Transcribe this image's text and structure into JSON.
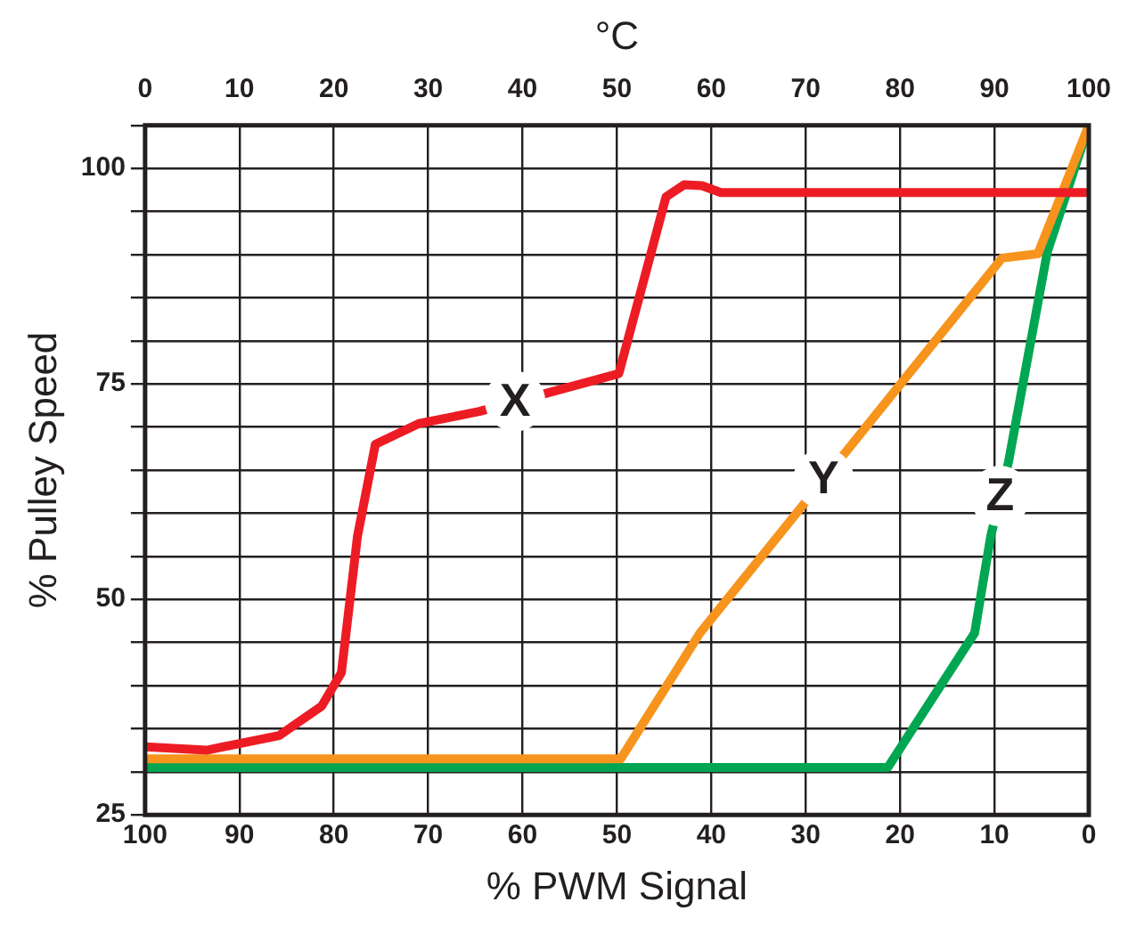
{
  "chart_data": {
    "type": "line",
    "xlabel": "% PWM Signal",
    "ylabel": "% Pulley Speed",
    "x2label": "°C",
    "xlim": [
      100,
      0
    ],
    "xticks": [
      100,
      90,
      80,
      70,
      60,
      50,
      40,
      30,
      20,
      10,
      0
    ],
    "x2lim": [
      0,
      100
    ],
    "x2ticks": [
      0,
      10,
      20,
      30,
      40,
      50,
      60,
      70,
      80,
      90,
      100
    ],
    "ylim": [
      25,
      105
    ],
    "yticks": [
      25,
      {
        "value": 30,
        "label": null
      },
      {
        "value": 35,
        "label": null
      },
      {
        "value": 40,
        "label": null
      },
      {
        "value": 45,
        "label": null
      },
      50,
      {
        "value": 55,
        "label": null
      },
      {
        "value": 60,
        "label": null
      },
      {
        "value": 65,
        "label": null
      },
      {
        "value": 70,
        "label": null
      },
      75,
      {
        "value": 80,
        "label": null
      },
      {
        "value": 85,
        "label": null
      },
      {
        "value": 90,
        "label": null
      },
      {
        "value": 95,
        "label": null
      },
      100,
      {
        "value": 105,
        "label": null
      }
    ],
    "grid": true,
    "legend": false,
    "marker": "none",
    "line_style": "solid",
    "series": [
      {
        "color": "#ed1c24",
        "x": [
          100,
          93.5,
          85.8,
          81.3,
          79.2,
          77.5,
          75.6,
          71,
          64.6,
          49.8,
          44.8,
          42.9,
          41,
          39,
          0
        ],
        "values": [
          32.9,
          32.5,
          34.2,
          37.6,
          41.5,
          57.3,
          68,
          70.4,
          71.8,
          76.2,
          96.7,
          98.1,
          98,
          97.2,
          97.2
        ]
      },
      {
        "color": "#f7941d",
        "x": [
          100,
          49.6,
          41.2,
          9.2,
          5.4,
          0
        ],
        "values": [
          31.5,
          31.5,
          46.1,
          89.6,
          90.1,
          105
        ]
      },
      {
        "color": "#00a651",
        "x": [
          100,
          21.3,
          12.1,
          10.4,
          8.5,
          4.4,
          0
        ],
        "values": [
          30.5,
          30.5,
          46.1,
          57.3,
          66,
          90.3,
          105
        ]
      }
    ],
    "annotations": [
      {
        "text": "X",
        "x": 60.8,
        "y": 73
      },
      {
        "text": "Y",
        "x": 28.1,
        "y": 64
      },
      {
        "text": "Z",
        "x": 9.4,
        "y": 62
      }
    ]
  }
}
